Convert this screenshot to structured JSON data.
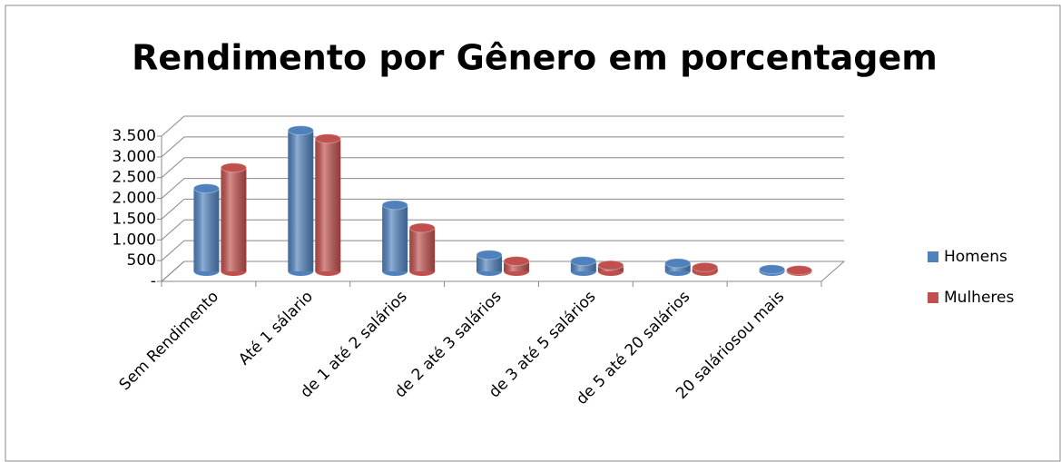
{
  "chart_data": {
    "type": "bar3d",
    "title": "Rendimento por Gênero em porcentagem",
    "categories": [
      "Sem Rendimento",
      "Até 1 sálario",
      "de 1 até 2 salários",
      "de 2 até 3 salários",
      "de 3 até 5 salários",
      "de 5 até 20 salários",
      "20 saláriosou mais"
    ],
    "series": [
      {
        "name": "Homens",
        "color": "#4f81bd",
        "values": [
          2000,
          3400,
          1600,
          400,
          250,
          200,
          50
        ]
      },
      {
        "name": "Mulheres",
        "color": "#c0504d",
        "values": [
          2500,
          3200,
          1050,
          250,
          150,
          100,
          30
        ]
      }
    ],
    "ylim": [
      0,
      3500
    ],
    "yticks": [
      {
        "value": 0,
        "label": "-"
      },
      500,
      {
        "value": 1000,
        "label": "1.000"
      },
      {
        "value": 1500,
        "label": "1.500"
      },
      {
        "value": 2000,
        "label": "2.000"
      },
      {
        "value": 2500,
        "label": "2.500"
      },
      {
        "value": 3000,
        "label": "3.000"
      },
      {
        "value": 3500,
        "label": "3.500"
      }
    ],
    "grid": true,
    "legend": "right"
  }
}
